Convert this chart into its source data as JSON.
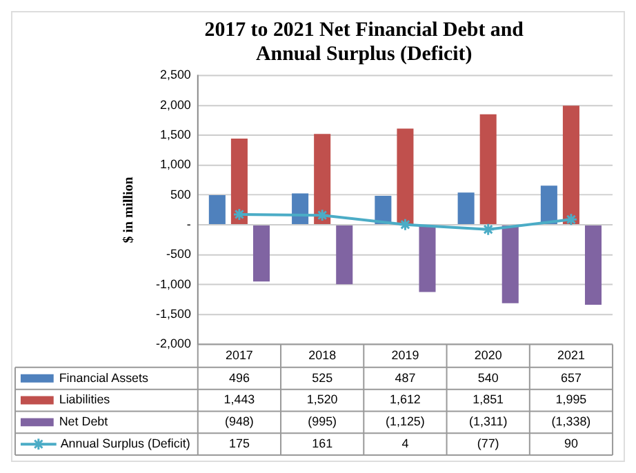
{
  "chart_data": {
    "type": "bar",
    "title": "2017 to 2021 Net Financial Debt and Annual Surplus (Deficit)",
    "ylabel": "$ in million",
    "categories": [
      "2017",
      "2018",
      "2019",
      "2020",
      "2021"
    ],
    "series": [
      {
        "name": "Financial Assets",
        "color": "#4f81bd",
        "values": [
          496,
          525,
          487,
          540,
          657
        ],
        "value_labels": [
          "496",
          "525",
          "487",
          "540",
          "657"
        ]
      },
      {
        "name": "Liabilities",
        "color": "#c0504d",
        "values": [
          1443,
          1520,
          1612,
          1851,
          1995
        ],
        "value_labels": [
          "1,443",
          "1,520",
          "1,612",
          "1,851",
          "1,995"
        ]
      },
      {
        "name": "Net Debt",
        "color": "#8064a2",
        "values": [
          -948,
          -995,
          -1125,
          -1311,
          -1338
        ],
        "value_labels": [
          "(948)",
          "(995)",
          "(1,125)",
          "(1,311)",
          "(1,338)"
        ]
      },
      {
        "name": "Annual Surplus (Deficit)",
        "type": "line",
        "color": "#4bacc6",
        "values": [
          175,
          161,
          4,
          -77,
          90
        ],
        "value_labels": [
          "175",
          "161",
          "4",
          "(77)",
          "90"
        ]
      }
    ],
    "ylim": [
      -2000,
      2500
    ],
    "yticks": [
      {
        "value": -2000,
        "label": "-2,000"
      },
      {
        "value": -1500,
        "label": "-1,500"
      },
      {
        "value": -1000,
        "label": "-1,000"
      },
      -500,
      {
        "value": 0,
        "label": "-"
      },
      500,
      {
        "value": 1000,
        "label": "1,000"
      },
      {
        "value": 1500,
        "label": "1,500"
      },
      {
        "value": 2000,
        "label": "2,000"
      },
      {
        "value": 2500,
        "label": "2,500"
      }
    ],
    "grid": "y",
    "legend": "bottom",
    "marker": "cross",
    "line_style": "solid"
  }
}
